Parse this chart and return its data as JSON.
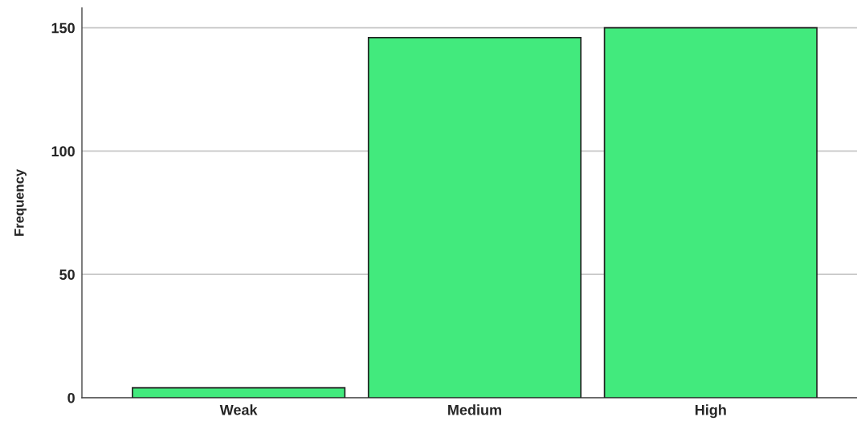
{
  "chart_data": {
    "type": "bar",
    "ylabel": "Frequency",
    "categories": [
      "Weak",
      "Medium",
      "High"
    ],
    "values": [
      4,
      146,
      150
    ],
    "color": "#42ea7d",
    "ylim": [
      0,
      158
    ],
    "yticks": [
      0,
      50,
      100,
      150
    ],
    "grid": "y"
  }
}
